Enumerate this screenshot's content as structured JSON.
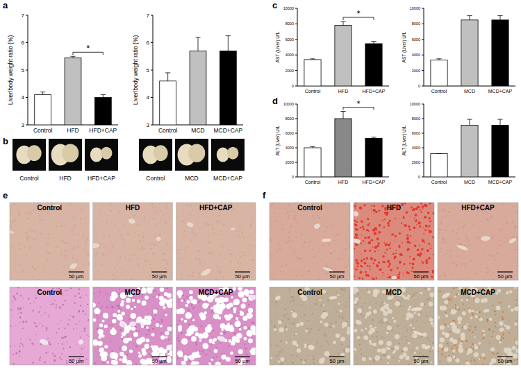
{
  "chart_data": [
    {
      "type": "bar",
      "categories": [
        "Control",
        "HFD",
        "HFD+CAP"
      ],
      "values": [
        4.1,
        5.45,
        4.0
      ],
      "errors": [
        0.1,
        0.05,
        0.1
      ],
      "colors": [
        "#ffffff",
        "#c0c0c0",
        "#000000"
      ],
      "y_label": "Liver/body weight ratio (%)",
      "ylim": [
        3,
        7
      ],
      "yticks": [
        3,
        4,
        5,
        6,
        7
      ],
      "annotations": [
        {
          "text": "*",
          "between": [
            "HFD",
            "HFD+CAP"
          ]
        }
      ]
    },
    {
      "type": "bar",
      "categories": [
        "Control",
        "MCD",
        "MCD+CAP"
      ],
      "values": [
        4.6,
        5.7,
        5.7
      ],
      "errors": [
        0.3,
        0.5,
        0.55
      ],
      "colors": [
        "#ffffff",
        "#c0c0c0",
        "#000000"
      ],
      "y_label": "Liver/body weight ratio (%)",
      "ylim": [
        3,
        7
      ],
      "yticks": [
        3,
        4,
        5,
        6,
        7
      ]
    },
    {
      "type": "bar",
      "categories": [
        "Control",
        "HFD",
        "HFD+CAP"
      ],
      "values": [
        3400,
        7800,
        5450
      ],
      "errors": [
        100,
        500,
        300
      ],
      "colors": [
        "#ffffff",
        "#c0c0c0",
        "#000000"
      ],
      "y_label": "AST (Liver) U/L",
      "ylim": [
        0,
        10000
      ],
      "yticks": [
        0,
        2000,
        4000,
        6000,
        8000,
        10000
      ],
      "annotations": [
        {
          "text": "*",
          "between": [
            "HFD",
            "HFD+CAP"
          ]
        }
      ]
    },
    {
      "type": "bar",
      "categories": [
        "Control",
        "MCD",
        "MCD+CAP"
      ],
      "values": [
        3350,
        8500,
        8500
      ],
      "errors": [
        150,
        550,
        550
      ],
      "colors": [
        "#ffffff",
        "#c0c0c0",
        "#000000"
      ],
      "y_label": "AST (Liver) U/L",
      "ylim": [
        0,
        10000
      ],
      "yticks": [
        0,
        2000,
        4000,
        6000,
        8000,
        10000
      ]
    },
    {
      "type": "bar",
      "categories": [
        "Control",
        "HFD",
        "HFD+CAP"
      ],
      "values": [
        4000,
        8000,
        5300
      ],
      "errors": [
        150,
        1000,
        150
      ],
      "colors": [
        "#ffffff",
        "#888888",
        "#000000"
      ],
      "y_label": "ALT (Liver) U/L",
      "ylim": [
        0,
        10000
      ],
      "yticks": [
        0,
        2000,
        4000,
        6000,
        8000,
        10000
      ],
      "annotations": [
        {
          "text": "*",
          "between": [
            "HFD",
            "HFD+CAP"
          ]
        }
      ]
    },
    {
      "type": "bar",
      "categories": [
        "Control",
        "MCD",
        "MCD+CAP"
      ],
      "values": [
        3200,
        7100,
        7100
      ],
      "errors": [
        0,
        800,
        800
      ],
      "colors": [
        "#ffffff",
        "#c0c0c0",
        "#000000"
      ],
      "y_label": "ALT (Liver) U/L",
      "ylim": [
        0,
        10000
      ],
      "yticks": [
        0,
        2000,
        4000,
        6000,
        8000,
        10000
      ]
    }
  ],
  "panel_labels": [
    "a",
    "b",
    "c",
    "d",
    "e",
    "f"
  ],
  "images": {
    "b": {
      "groups": [
        [
          "Control",
          "HFD",
          "HFD+CAP"
        ],
        [
          "Control",
          "MCD",
          "MCD+CAP"
        ]
      ]
    },
    "e": {
      "rows": [
        [
          "Control",
          "HFD",
          "HFD+CAP"
        ],
        [
          "Control",
          "MCD",
          "MCD+CAP"
        ]
      ],
      "scale_bar": "50 µm"
    },
    "f": {
      "rows": [
        [
          "Control",
          "HFD",
          "HFD+CAP"
        ],
        [
          "Control",
          "MCD",
          "MCD+CAP"
        ]
      ],
      "scale_bar": "50 µm"
    }
  }
}
